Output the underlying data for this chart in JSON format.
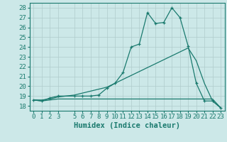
{
  "x": [
    0,
    1,
    2,
    3,
    5,
    6,
    7,
    8,
    9,
    10,
    11,
    12,
    13,
    14,
    15,
    16,
    17,
    18,
    19,
    20,
    21,
    22,
    23
  ],
  "humidex": [
    18.6,
    18.5,
    18.8,
    19.0,
    19.0,
    19.0,
    19.0,
    19.1,
    19.8,
    20.3,
    21.4,
    24.0,
    24.3,
    27.5,
    26.4,
    26.5,
    28.0,
    27.0,
    24.1,
    20.3,
    18.5,
    18.5,
    17.8
  ],
  "line_upper": [
    18.6,
    18.6,
    18.7,
    18.9,
    19.1,
    19.3,
    19.5,
    19.7,
    19.9,
    20.3,
    20.7,
    21.1,
    21.5,
    21.9,
    22.3,
    22.7,
    23.1,
    23.5,
    23.9,
    22.6,
    20.3,
    18.5,
    17.8
  ],
  "line_lower": [
    18.6,
    18.5,
    18.6,
    18.7,
    18.7,
    18.7,
    18.7,
    18.7,
    18.7,
    18.7,
    18.7,
    18.7,
    18.7,
    18.7,
    18.7,
    18.7,
    18.7,
    18.7,
    18.7,
    18.7,
    18.7,
    18.7,
    17.8
  ],
  "color": "#1a7a6e",
  "bg_color": "#cce8e8",
  "grid_color": "#b0cccc",
  "xlabel": "Humidex (Indice chaleur)",
  "ylim": [
    17.5,
    28.5
  ],
  "xlim": [
    -0.5,
    23.5
  ],
  "yticks": [
    18,
    19,
    20,
    21,
    22,
    23,
    24,
    25,
    26,
    27,
    28
  ],
  "xticks": [
    0,
    1,
    2,
    3,
    5,
    6,
    7,
    8,
    9,
    10,
    11,
    12,
    13,
    14,
    15,
    16,
    17,
    18,
    19,
    20,
    21,
    22,
    23
  ],
  "tick_fontsize": 6.5,
  "xlabel_fontsize": 7.5
}
